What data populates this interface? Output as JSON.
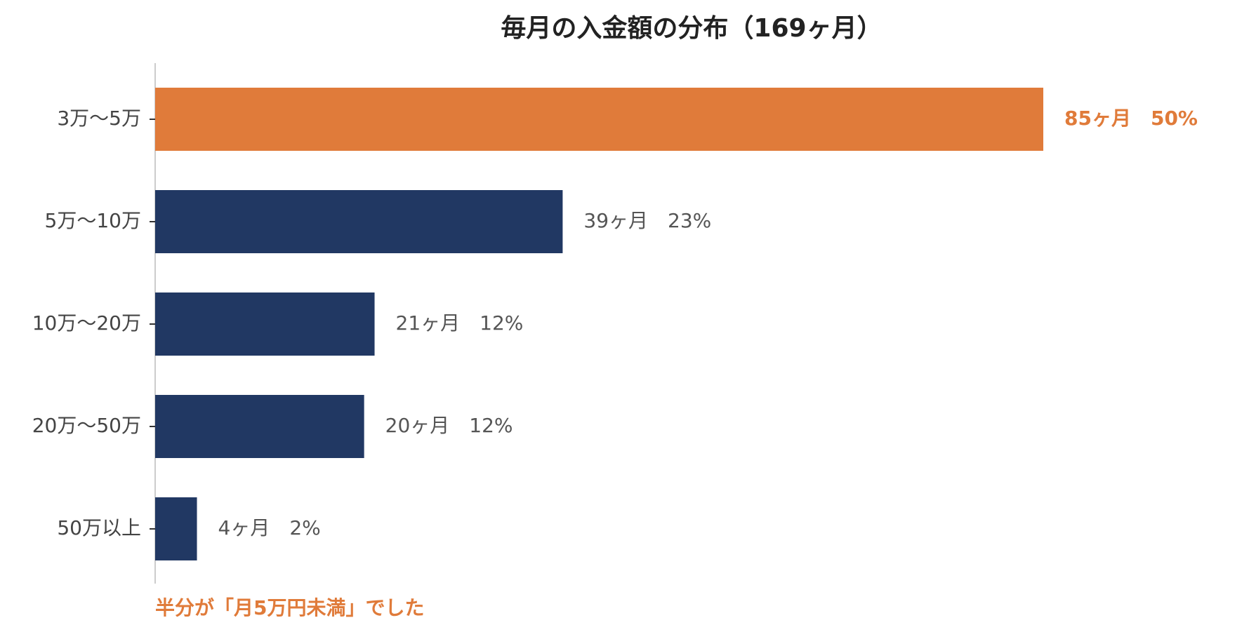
{
  "chart_data": {
    "type": "bar",
    "orientation": "horizontal",
    "title": "毎月の入金額の分布（169ヶ月）",
    "categories": [
      "3万〜5万",
      "5万〜10万",
      "10万〜20万",
      "20万〜50万",
      "50万以上"
    ],
    "values": [
      85,
      39,
      21,
      20,
      4
    ],
    "value_labels": [
      "85ヶ月　50%",
      "39ヶ月　23%",
      "21ヶ月　12%",
      "20ヶ月　12%",
      "4ヶ月　2%"
    ],
    "highlight_index": 0,
    "xlim": [
      0,
      85
    ],
    "xlabel": "",
    "ylabel": "",
    "grid": false,
    "annotation": "半分が「月5万円未満」でした",
    "colors": {
      "bar": "#213863",
      "highlight": "#e07b3a",
      "axis": "#bbbbbb",
      "tick": "#333333"
    }
  }
}
